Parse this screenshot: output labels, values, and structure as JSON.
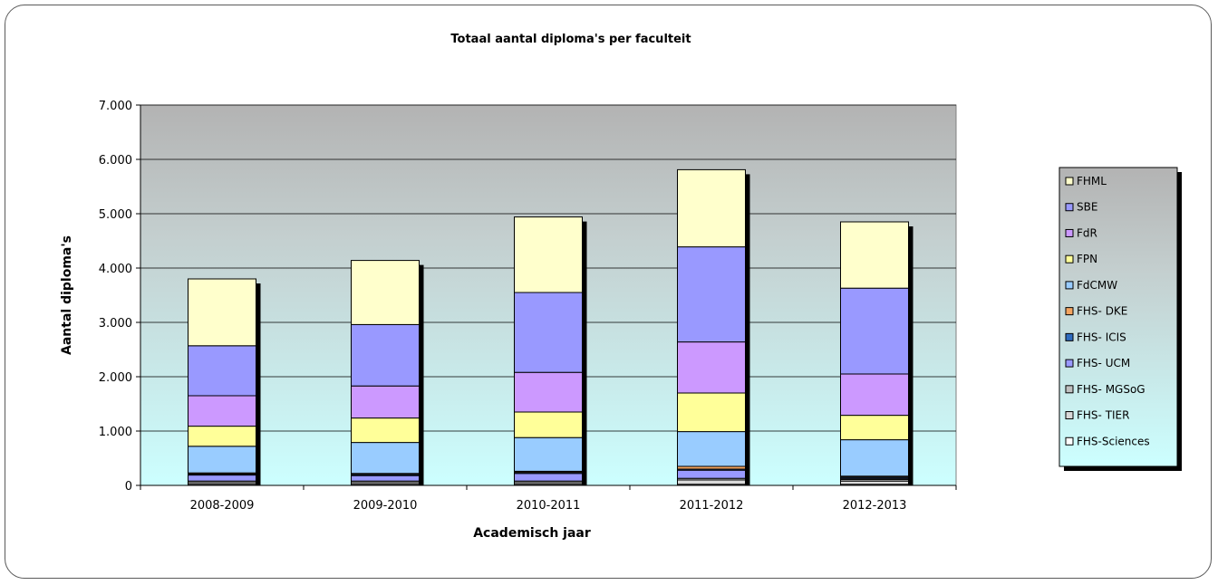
{
  "chart_data": {
    "type": "bar",
    "stacked": true,
    "title": "Totaal aantal diploma's per faculteit",
    "xlabel": "Academisch jaar",
    "ylabel": "Aantal diploma's",
    "ylim": [
      0,
      7000
    ],
    "yticks": [
      0,
      1000,
      2000,
      3000,
      4000,
      5000,
      6000,
      7000
    ],
    "ytick_labels": [
      "0",
      "1.000",
      "2.000",
      "3.000",
      "4.000",
      "5.000",
      "6.000",
      "7.000"
    ],
    "categories": [
      "2008-2009",
      "2009-2010",
      "2010-2011",
      "2011-2012",
      "2012-2013"
    ],
    "grid": true,
    "legend_position": "right",
    "series": [
      {
        "name": "FHS-Sciences",
        "color": "#ffffff",
        "values": [
          20,
          20,
          20,
          20,
          20
        ]
      },
      {
        "name": "FHS- TIER",
        "color": "#d9d9d9",
        "values": [
          30,
          30,
          30,
          80,
          60
        ]
      },
      {
        "name": "FHS- MGSoG",
        "color": "#c0c0c0",
        "values": [
          30,
          30,
          30,
          30,
          30
        ]
      },
      {
        "name": "FHS- UCM",
        "color": "#9999ff",
        "values": [
          110,
          100,
          140,
          150,
          20
        ]
      },
      {
        "name": "FHS- ICIS",
        "color": "#2e6bbf",
        "values": [
          20,
          20,
          20,
          20,
          20
        ]
      },
      {
        "name": "FHS- DKE",
        "color": "#f4a460",
        "values": [
          20,
          20,
          20,
          50,
          20
        ]
      },
      {
        "name": "FdCMW",
        "color": "#99ccff",
        "values": [
          490,
          570,
          620,
          640,
          670
        ]
      },
      {
        "name": "FPN",
        "color": "#ffff99",
        "values": [
          370,
          450,
          470,
          710,
          450
        ]
      },
      {
        "name": "FdR",
        "color": "#cc99ff",
        "values": [
          560,
          590,
          730,
          940,
          760
        ]
      },
      {
        "name": "SBE",
        "color": "#9999ff",
        "values": [
          920,
          1130,
          1470,
          1750,
          1580
        ]
      },
      {
        "name": "FHML",
        "color": "#ffffcc",
        "values": [
          1230,
          1180,
          1390,
          1420,
          1220
        ]
      }
    ]
  }
}
